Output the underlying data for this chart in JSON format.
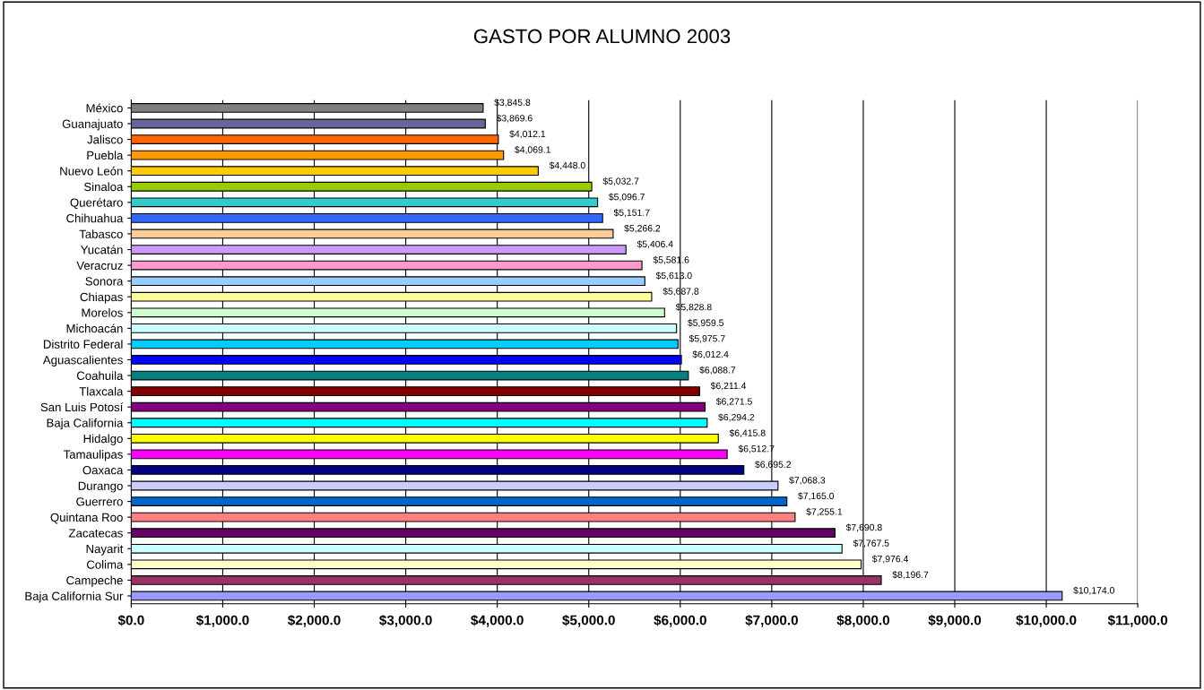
{
  "chart_data": {
    "type": "bar",
    "orientation": "horizontal",
    "title": "GASTO POR ALUMNO 2003",
    "categories": [
      "México",
      "Guanajuato",
      "Jalisco",
      "Puebla",
      "Nuevo León",
      "Sinaloa",
      "Querétaro",
      "Chihuahua",
      "Tabasco",
      "Yucatán",
      "Veracruz",
      "Sonora",
      "Chiapas",
      "Morelos",
      "Michoacán",
      "Distrito Federal",
      "Aguascalientes",
      "Coahuila",
      "Tlaxcala",
      "San Luis Potosí",
      "Baja California",
      "Hidalgo",
      "Tamaulipas",
      "Oaxaca",
      "Durango",
      "Guerrero",
      "Quintana Roo",
      "Zacatecas",
      "Nayarit",
      "Colima",
      "Campeche",
      "Baja California Sur"
    ],
    "values": [
      3845.8,
      3869.6,
      4012.1,
      4069.1,
      4448.0,
      5032.7,
      5096.7,
      5151.7,
      5266.2,
      5406.4,
      5581.6,
      5613.0,
      5687.8,
      5828.8,
      5959.5,
      5975.7,
      6012.4,
      6088.7,
      6211.4,
      6271.5,
      6294.2,
      6415.8,
      6512.7,
      6695.2,
      7068.3,
      7165.0,
      7255.1,
      7690.8,
      7767.5,
      7976.4,
      8196.7,
      10174.0
    ],
    "value_labels": [
      "$3,845.8",
      "$3,869.6",
      "$4,012.1",
      "$4,069.1",
      "$4,448.0",
      "$5,032.7",
      "$5,096.7",
      "$5,151.7",
      "$5,266.2",
      "$5,406.4",
      "$5,581.6",
      "$5,613.0",
      "$5,687.8",
      "$5,828.8",
      "$5,959.5",
      "$5,975.7",
      "$6,012.4",
      "$6,088.7",
      "$6,211.4",
      "$6,271.5",
      "$6,294.2",
      "$6,415.8",
      "$6,512.7",
      "$6,695.2",
      "$7,068.3",
      "$7,165.0",
      "$7,255.1",
      "$7,690.8",
      "$7,767.5",
      "$7,976.4",
      "$8,196.7",
      "$10,174.0"
    ],
    "colors": [
      "#808080",
      "#666699",
      "#ff6600",
      "#ff9900",
      "#ffcc00",
      "#99cc00",
      "#33cccc",
      "#3366ff",
      "#ffcc99",
      "#cc99ff",
      "#ff99cc",
      "#99ccff",
      "#ffff99",
      "#ccffcc",
      "#ccffff",
      "#00ccff",
      "#0000ff",
      "#008080",
      "#800000",
      "#800080",
      "#00ffff",
      "#ffff00",
      "#ff00ff",
      "#000080",
      "#ccccff",
      "#0066cc",
      "#ff8080",
      "#660066",
      "#ccffff",
      "#ffffcc",
      "#993366",
      "#9999ff"
    ],
    "xlim": [
      0,
      11000
    ],
    "xticks": [
      {
        "value": 0,
        "label": "$0.0"
      },
      {
        "value": 1000,
        "label": "$1,000.0"
      },
      {
        "value": 2000,
        "label": "$2,000.0"
      },
      {
        "value": 3000,
        "label": "$3,000.0"
      },
      {
        "value": 4000,
        "label": "$4,000.0"
      },
      {
        "value": 5000,
        "label": "$5,000.0"
      },
      {
        "value": 6000,
        "label": "$6,000.0"
      },
      {
        "value": 7000,
        "label": "$7,000.0"
      },
      {
        "value": 8000,
        "label": "$8,000.0"
      },
      {
        "value": 9000,
        "label": "$9,000.0"
      },
      {
        "value": 10000,
        "label": "$10,000.0"
      },
      {
        "value": 11000,
        "label": "$11,000.0"
      }
    ],
    "grid": "x",
    "legend": false
  }
}
